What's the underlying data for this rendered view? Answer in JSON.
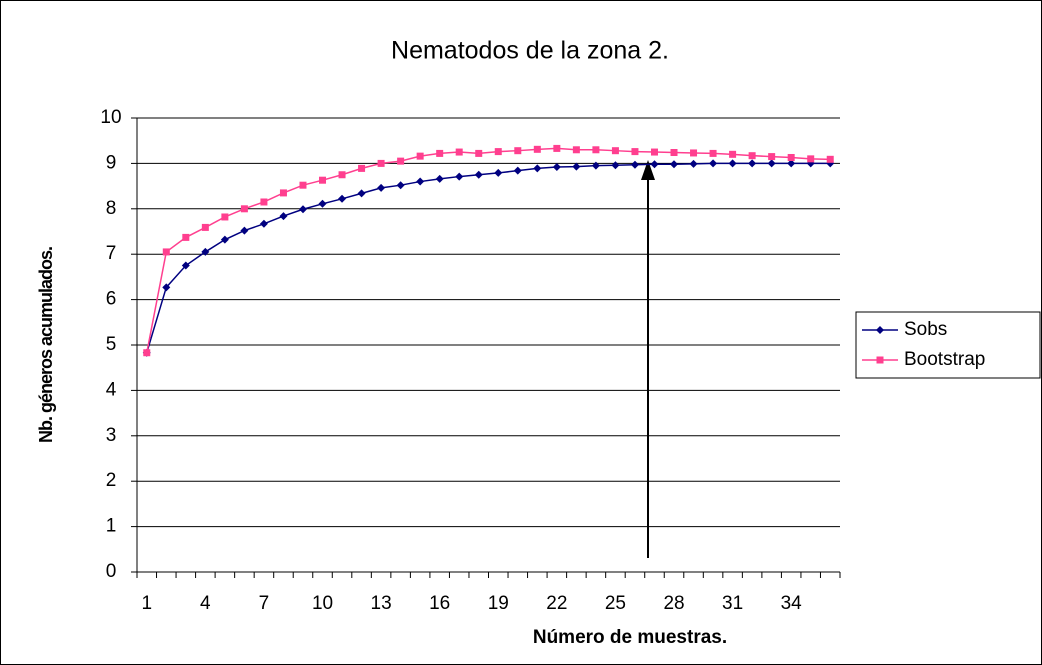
{
  "chart_data": {
    "type": "line",
    "title": "Nematodos de la zona 2.",
    "x_label": "Número de muestras.",
    "y_label": "Nb. géneros acumulados.",
    "categories": [
      1,
      null,
      null,
      4,
      null,
      null,
      7,
      null,
      null,
      10,
      null,
      null,
      13,
      null,
      null,
      16,
      null,
      null,
      19,
      null,
      null,
      22,
      null,
      null,
      25,
      null,
      null,
      28,
      null,
      null,
      31,
      null,
      null,
      34,
      null,
      null
    ],
    "series": [
      {
        "name": "Sobs",
        "color": "#000080",
        "marker": "diamond",
        "values": [
          4.83,
          6.27,
          6.75,
          7.05,
          7.32,
          7.52,
          7.67,
          7.84,
          7.99,
          8.11,
          8.22,
          8.34,
          8.46,
          8.52,
          8.6,
          8.66,
          8.71,
          8.75,
          8.79,
          8.84,
          8.89,
          8.92,
          8.93,
          8.95,
          8.96,
          8.97,
          8.98,
          8.98,
          8.99,
          9.0,
          9.0,
          9.0,
          9.0,
          9.0,
          9.0,
          9.0
        ]
      },
      {
        "name": "Bootstrap",
        "color": "#ff3f8f",
        "marker": "square",
        "values": [
          4.83,
          7.05,
          7.37,
          7.59,
          7.82,
          8.0,
          8.15,
          8.35,
          8.52,
          8.63,
          8.75,
          8.89,
          9.0,
          9.05,
          9.16,
          9.22,
          9.25,
          9.22,
          9.26,
          9.28,
          9.31,
          9.33,
          9.3,
          9.3,
          9.28,
          9.26,
          9.25,
          9.24,
          9.23,
          9.22,
          9.2,
          9.17,
          9.15,
          9.13,
          9.1,
          9.09
        ]
      }
    ],
    "ylim": [
      0,
      10
    ],
    "yticks": [
      0,
      1,
      2,
      3,
      4,
      5,
      6,
      7,
      8,
      9,
      10
    ],
    "grid": true,
    "legend": "right"
  }
}
